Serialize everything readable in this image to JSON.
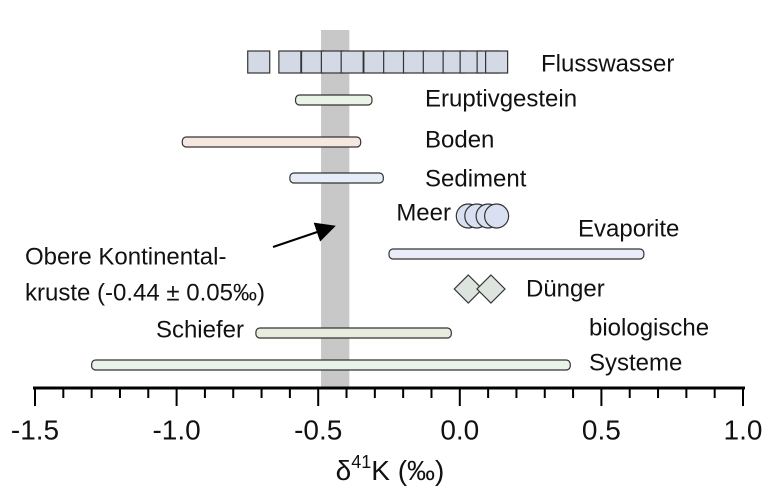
{
  "chart_data": {
    "type": "range",
    "xlim": [
      -1.5,
      1.0
    ],
    "xticks": [
      -1.5,
      {
        "value": -1.0,
        "label": "-1.0"
      },
      -0.5,
      {
        "value": 0.0,
        "label": "0.0"
      },
      0.5,
      {
        "value": 1.0,
        "label": "1.0"
      }
    ],
    "xminorticks": [
      -1.4,
      -1.3,
      -1.2,
      -1.1,
      -0.9,
      -0.8,
      -0.7,
      -0.6,
      -0.4,
      -0.3,
      -0.2,
      -0.1,
      0.1,
      0.2,
      0.3,
      0.4,
      0.6,
      0.7,
      0.8,
      0.9
    ],
    "xlabel": [
      "δ",
      "41",
      "K (‰)"
    ],
    "band": {
      "center": -0.44,
      "halfwidth": 0.05,
      "color": "#c8c8c8",
      "annotation": [
        "Obere Kontinental-",
        "kruste (-0.44 ± 0.05‰)"
      ]
    },
    "series": [
      {
        "label": [
          "Flusswasser"
        ],
        "marker": "square",
        "color": "#d3dae5",
        "values": [
          -0.71,
          -0.6,
          -0.52,
          -0.45,
          -0.38,
          -0.3,
          -0.23,
          -0.16,
          -0.09,
          -0.02,
          0.04,
          0.1,
          0.13
        ]
      },
      {
        "label": [
          "Eruptivgestein"
        ],
        "marker": "bar",
        "color": "#e9f3e6",
        "values": [
          -0.58,
          -0.31
        ]
      },
      {
        "label": [
          "Boden"
        ],
        "marker": "bar",
        "color": "#f6e7e0",
        "values": [
          -0.98,
          -0.35
        ]
      },
      {
        "label": [
          "Sediment"
        ],
        "marker": "bar",
        "color": "#e7edf7",
        "values": [
          -0.6,
          -0.27
        ]
      },
      {
        "label": [
          "Meer"
        ],
        "marker": "circle",
        "color": "#d9e0f1",
        "values": [
          0.03,
          0.06,
          0.1,
          0.13
        ]
      },
      {
        "label": [
          "Evaporite"
        ],
        "marker": "bar",
        "color": "#eaecf7",
        "values": [
          -0.25,
          0.65
        ]
      },
      {
        "label": [
          "Dünger"
        ],
        "marker": "diamond",
        "color": "#dde3dd",
        "values": [
          0.03,
          0.11
        ]
      },
      {
        "label": [
          "Schiefer"
        ],
        "marker": "bar",
        "color": "#e8ecdf",
        "values": [
          -0.72,
          -0.03
        ]
      },
      {
        "label": [
          "biologische",
          "Systeme"
        ],
        "marker": "bar",
        "color": "#e8f2e8",
        "values": [
          -1.3,
          0.39
        ]
      }
    ]
  }
}
